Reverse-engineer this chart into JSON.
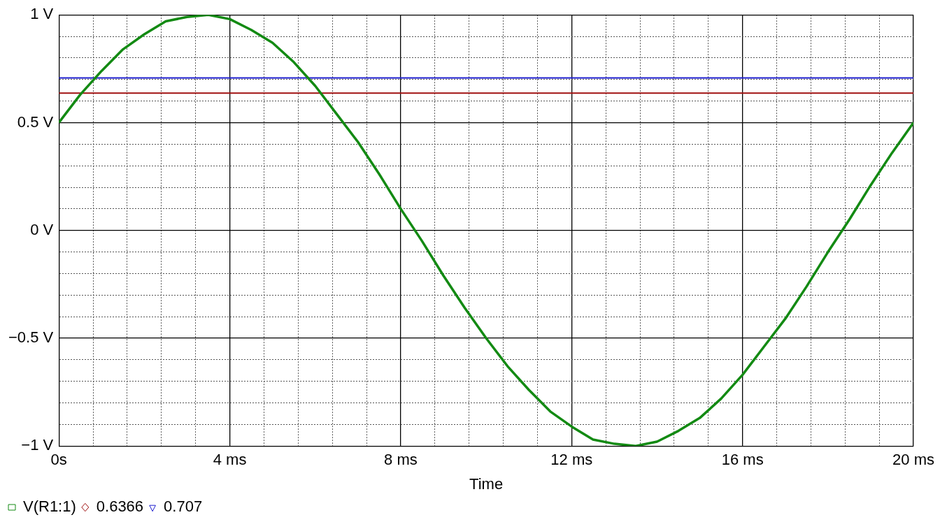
{
  "chart_data": {
    "type": "line",
    "xlabel": "Time",
    "x": [
      0,
      0.5,
      1,
      1.5,
      2,
      2.5,
      3,
      3.5,
      4,
      4.5,
      5,
      5.5,
      6,
      6.5,
      7,
      7.5,
      8,
      8.5,
      9,
      9.5,
      10,
      10.5,
      11,
      11.5,
      12,
      12.5,
      13,
      13.5,
      14,
      14.5,
      15,
      15.5,
      16,
      16.5,
      17,
      17.5,
      18,
      18.5,
      19,
      19.5,
      20
    ],
    "series": [
      {
        "name": "V(R1:1)",
        "color": "#138a13",
        "values": [
          0.5,
          0.63,
          0.74,
          0.84,
          0.91,
          0.97,
          0.99,
          1.0,
          0.98,
          0.93,
          0.87,
          0.78,
          0.67,
          0.54,
          0.41,
          0.26,
          0.1,
          -0.05,
          -0.21,
          -0.36,
          -0.5,
          -0.63,
          -0.74,
          -0.84,
          -0.91,
          -0.97,
          -0.99,
          -1.0,
          -0.98,
          -0.93,
          -0.87,
          -0.78,
          -0.67,
          -0.54,
          -0.41,
          -0.26,
          -0.1,
          0.05,
          0.21,
          0.36,
          0.5
        ]
      },
      {
        "name": "0.6366",
        "color": "#a01010",
        "values": [
          0.6366,
          0.6366,
          0.6366,
          0.6366,
          0.6366,
          0.6366,
          0.6366,
          0.6366,
          0.6366,
          0.6366,
          0.6366,
          0.6366,
          0.6366,
          0.6366,
          0.6366,
          0.6366,
          0.6366,
          0.6366,
          0.6366,
          0.6366,
          0.6366,
          0.6366,
          0.6366,
          0.6366,
          0.6366,
          0.6366,
          0.6366,
          0.6366,
          0.6366,
          0.6366,
          0.6366,
          0.6366,
          0.6366,
          0.6366,
          0.6366,
          0.6366,
          0.6366,
          0.6366,
          0.6366,
          0.6366,
          0.6366
        ]
      },
      {
        "name": "0.707",
        "color": "#2020d0",
        "values": [
          0.707,
          0.707,
          0.707,
          0.707,
          0.707,
          0.707,
          0.707,
          0.707,
          0.707,
          0.707,
          0.707,
          0.707,
          0.707,
          0.707,
          0.707,
          0.707,
          0.707,
          0.707,
          0.707,
          0.707,
          0.707,
          0.707,
          0.707,
          0.707,
          0.707,
          0.707,
          0.707,
          0.707,
          0.707,
          0.707,
          0.707,
          0.707,
          0.707,
          0.707,
          0.707,
          0.707,
          0.707,
          0.707,
          0.707,
          0.707,
          0.707
        ]
      }
    ],
    "xlim": [
      0,
      20
    ],
    "xticks": [
      {
        "value": 0,
        "label": "0s"
      },
      {
        "value": 0.8,
        "label": null
      },
      {
        "value": 1.6,
        "label": null
      },
      {
        "value": 2.4,
        "label": null
      },
      {
        "value": 3.2,
        "label": null
      },
      {
        "value": 4,
        "label": "4 ms"
      },
      {
        "value": 4.8,
        "label": null
      },
      {
        "value": 5.6,
        "label": null
      },
      {
        "value": 6.4,
        "label": null
      },
      {
        "value": 7.2,
        "label": null
      },
      {
        "value": 8,
        "label": "8 ms"
      },
      {
        "value": 8.8,
        "label": null
      },
      {
        "value": 9.6,
        "label": null
      },
      {
        "value": 10.4,
        "label": null
      },
      {
        "value": 11.2,
        "label": null
      },
      {
        "value": 12,
        "label": "12 ms"
      },
      {
        "value": 12.8,
        "label": null
      },
      {
        "value": 13.6,
        "label": null
      },
      {
        "value": 14.4,
        "label": null
      },
      {
        "value": 15.2,
        "label": null
      },
      {
        "value": 16,
        "label": "16 ms"
      },
      {
        "value": 16.8,
        "label": null
      },
      {
        "value": 17.6,
        "label": null
      },
      {
        "value": 18.4,
        "label": null
      },
      {
        "value": 19.2,
        "label": null
      },
      {
        "value": 20,
        "label": "20 ms"
      }
    ],
    "ylim": [
      -1,
      1
    ],
    "yticks": [
      {
        "value": -1,
        "label": "−1 V"
      },
      {
        "value": -0.9,
        "label": null
      },
      {
        "value": -0.8,
        "label": null
      },
      {
        "value": -0.7,
        "label": null
      },
      {
        "value": -0.6,
        "label": null
      },
      {
        "value": -0.5,
        "label": "−0.5 V"
      },
      {
        "value": -0.4,
        "label": null
      },
      {
        "value": -0.3,
        "label": null
      },
      {
        "value": -0.2,
        "label": null
      },
      {
        "value": -0.1,
        "label": null
      },
      {
        "value": 0,
        "label": "0 V"
      },
      {
        "value": 0.1,
        "label": null
      },
      {
        "value": 0.2,
        "label": null
      },
      {
        "value": 0.3,
        "label": null
      },
      {
        "value": 0.4,
        "label": null
      },
      {
        "value": 0.5,
        "label": "0.5 V"
      },
      {
        "value": 0.6,
        "label": null
      },
      {
        "value": 0.7,
        "label": null
      },
      {
        "value": 0.8,
        "label": null
      },
      {
        "value": 0.9,
        "label": null
      },
      {
        "value": 1,
        "label": "1 V"
      }
    ],
    "grid": true,
    "legend": "bottom left",
    "line_style": "solid"
  }
}
